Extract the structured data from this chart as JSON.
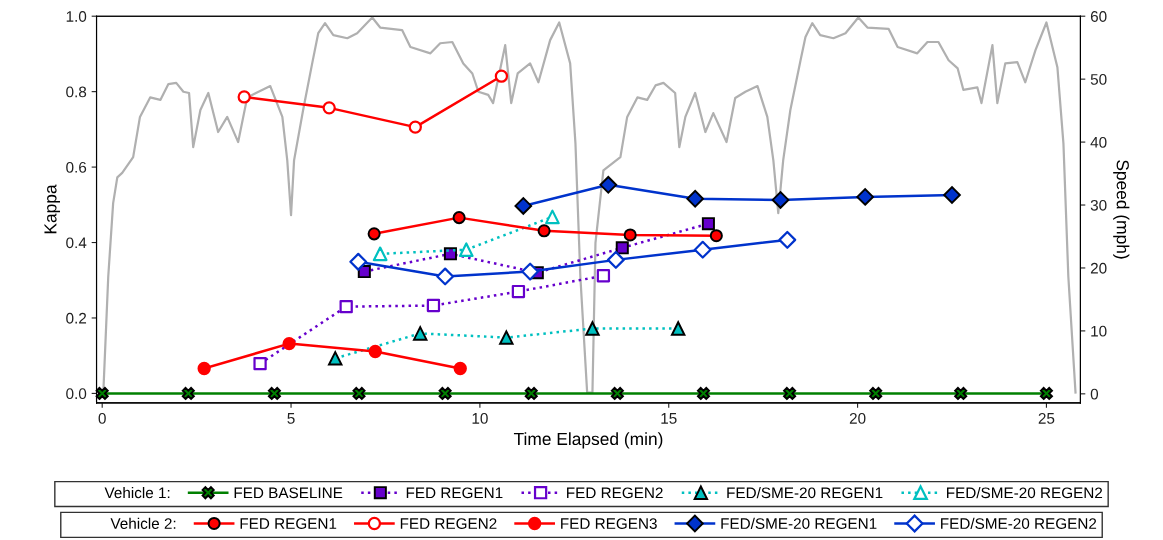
{
  "chart_data": {
    "type": "line",
    "xlabel": "Time Elapsed (min)",
    "ylabel": "Kappa",
    "y2label": "Speed (mph)",
    "xlim": [
      -0.15,
      25.9
    ],
    "xticks": [
      0,
      5,
      10,
      15,
      20,
      25
    ],
    "ylim": [
      -0.025,
      1.0
    ],
    "yticks": [
      {
        "value": 0,
        "label": "0.0"
      },
      {
        "value": 0.2,
        "label": "0.2"
      },
      {
        "value": 0.4,
        "label": "0.4"
      },
      {
        "value": 0.6,
        "label": "0.6"
      },
      {
        "value": 0.8,
        "label": "0.8"
      },
      {
        "value": 1.0,
        "label": "1.0"
      }
    ],
    "y2lim": [
      -1.43,
      60
    ],
    "y2ticks": [
      0,
      10,
      20,
      30,
      40,
      50,
      60
    ],
    "grid": false,
    "legend": "bottom",
    "legend_title": [
      "Vehicle 1:",
      "Vehicle 2:"
    ],
    "series": [
      {
        "axis": "y2",
        "color": "#b0b0b0",
        "marker": "none",
        "line_style": "solid",
        "x": [
          0,
          0.03,
          0.16,
          0.29,
          0.4,
          0.53,
          0.82,
          1.0,
          1.27,
          1.54,
          1.75,
          1.96,
          2.15,
          2.3,
          2.41,
          2.6,
          2.81,
          3.07,
          3.31,
          3.6,
          3.84,
          4.18,
          4.45,
          4.77,
          4.9,
          5.0,
          5.08,
          5.32,
          5.56,
          5.72,
          5.9,
          6.12,
          6.49,
          6.75,
          7.15,
          7.36,
          7.94,
          8.16,
          8.69,
          8.95,
          9.27,
          9.56,
          9.8,
          9.96,
          10.22,
          10.35,
          10.67,
          10.83,
          11.0,
          11.33,
          11.55,
          11.86,
          12.1,
          12.39,
          12.53,
          12.66,
          12.84,
          12.98,
          13.06,
          13.27,
          13.72,
          13.9,
          14.17,
          14.43,
          14.65,
          14.86,
          15.17,
          15.28,
          15.44,
          15.7,
          15.97,
          16.18,
          16.53,
          16.76,
          17.03,
          17.35,
          17.61,
          17.77,
          17.9,
          18.03,
          18.22,
          18.49,
          18.62,
          18.8,
          19.01,
          19.36,
          19.68,
          20.02,
          20.26,
          20.82,
          21.06,
          21.58,
          21.85,
          22.14,
          22.41,
          22.65,
          22.8,
          23.17,
          23.28,
          23.57,
          23.7,
          23.91,
          24.23,
          24.44,
          24.71,
          25.0,
          25.29,
          25.45,
          25.58,
          25.77
        ],
        "values": [
          0,
          0.2,
          18.6,
          30.3,
          34.4,
          35.1,
          37.6,
          44,
          47.1,
          46.7,
          49.2,
          49.4,
          48,
          47.8,
          39.2,
          45.1,
          47.8,
          41.6,
          44,
          40,
          47.1,
          48.1,
          48.9,
          44,
          37.1,
          28.4,
          37.1,
          45.1,
          52.5,
          57.3,
          58.9,
          57,
          56.5,
          57.3,
          59.8,
          58.2,
          57.8,
          55.1,
          54.1,
          55.7,
          55.9,
          52.5,
          50.9,
          48,
          47.5,
          46.2,
          55.4,
          46.2,
          50.9,
          52.5,
          49.5,
          56.2,
          59,
          52.5,
          39.8,
          18.6,
          0.2,
          0.2,
          24,
          35.5,
          37.6,
          44,
          47.1,
          46.7,
          49,
          49.4,
          47.8,
          39.2,
          44,
          47.8,
          41.6,
          44.6,
          40,
          47,
          48,
          48.9,
          44,
          37.1,
          28.7,
          37.1,
          45.1,
          53,
          56.7,
          58.9,
          57,
          56.5,
          57.3,
          59.8,
          58.2,
          58,
          55.1,
          54.1,
          55.9,
          55.9,
          53,
          51.7,
          48.3,
          48.7,
          46.2,
          55.4,
          46.2,
          52.5,
          52.7,
          49.5,
          54.6,
          59,
          51.9,
          39.8,
          18.6,
          0.2
        ]
      },
      {
        "name": "FED BASELINE",
        "color": "#008000",
        "marker": "cross",
        "line_style": "solid",
        "x": [
          0,
          2.28,
          4.56,
          6.8,
          9.08,
          11.36,
          13.64,
          15.92,
          18.2,
          20.48,
          22.73,
          25.0
        ],
        "values": [
          0,
          0,
          0,
          0,
          0,
          0,
          0,
          0,
          0,
          0,
          0,
          0
        ]
      },
      {
        "name": "FED REGEN1",
        "color": "#6600cc",
        "marker": "square",
        "line_style": "dotted",
        "x": [
          6.94,
          9.22,
          11.52,
          13.77,
          16.05
        ],
        "values": [
          0.323,
          0.37,
          0.32,
          0.386,
          0.45
        ]
      },
      {
        "name": "FED REGEN2",
        "color": "#6600cc",
        "colors": [
          "#ffffff",
          "#ffffff",
          "#ffffff",
          "#ffffff",
          "#ffffff"
        ],
        "marker": "square",
        "line_style": "dotted",
        "x": [
          4.18,
          6.46,
          8.77,
          11.02,
          13.27
        ],
        "values": [
          0.079,
          0.23,
          0.233,
          0.27,
          0.312
        ]
      },
      {
        "name": "FED/SME-20 REGEN1",
        "color": "#00c0c0",
        "marker": "triangle",
        "line_style": "dotted",
        "x": [
          6.17,
          8.42,
          10.7,
          12.98,
          15.25
        ],
        "values": [
          0.093,
          0.159,
          0.148,
          0.172,
          0.172
        ]
      },
      {
        "name": "FED/SME-20 REGEN2",
        "color": "#00c0c0",
        "colors": [
          "#ffffff",
          "#ffffff",
          "#ffffff"
        ],
        "marker": "triangle",
        "line_style": "dotted",
        "x": [
          7.36,
          9.64,
          11.92
        ],
        "values": [
          0.37,
          0.381,
          0.468
        ]
      },
      {
        "name": "FED REGEN1",
        "color": "#ff0000",
        "marker": "circle",
        "line_style": "solid",
        "x": [
          7.2,
          9.45,
          11.7,
          13.98,
          16.26
        ],
        "values": [
          0.423,
          0.466,
          0.431,
          0.42,
          0.418
        ]
      },
      {
        "name": "FED REGEN2",
        "color": "#ff0000",
        "colors": [
          "#ffffff",
          "#ffffff",
          "#ffffff",
          "#ffffff"
        ],
        "marker": "circle",
        "line_style": "solid",
        "x": [
          3.76,
          6.01,
          8.29,
          10.57
        ],
        "values": [
          0.786,
          0.757,
          0.706,
          0.841
        ]
      },
      {
        "name": "FED REGEN3",
        "color": "#ff0000",
        "colors": [
          "#ff0000",
          "#ff0000",
          "#ff0000",
          "#ff0000"
        ],
        "marker": "circle",
        "line_style": "solid",
        "x": [
          2.7,
          4.95,
          7.23,
          9.48
        ],
        "values": [
          0.066,
          0.132,
          0.111,
          0.066
        ]
      },
      {
        "name": "FED/SME-20 REGEN1",
        "color": "#0033cc",
        "marker": "diamond",
        "line_style": "solid",
        "x": [
          11.15,
          13.4,
          15.7,
          17.96,
          20.2,
          22.5
        ],
        "values": [
          0.497,
          0.553,
          0.516,
          0.513,
          0.521,
          0.526
        ]
      },
      {
        "name": "FED/SME-20 REGEN2",
        "color": "#0033cc",
        "colors": [
          "#ffffff",
          "#ffffff",
          "#ffffff",
          "#ffffff",
          "#ffffff",
          "#ffffff"
        ],
        "marker": "diamond",
        "line_style": "solid",
        "x": [
          6.78,
          9.08,
          11.33,
          13.6,
          15.9,
          18.14
        ],
        "values": [
          0.349,
          0.31,
          0.323,
          0.354,
          0.381,
          0.407
        ]
      }
    ]
  }
}
